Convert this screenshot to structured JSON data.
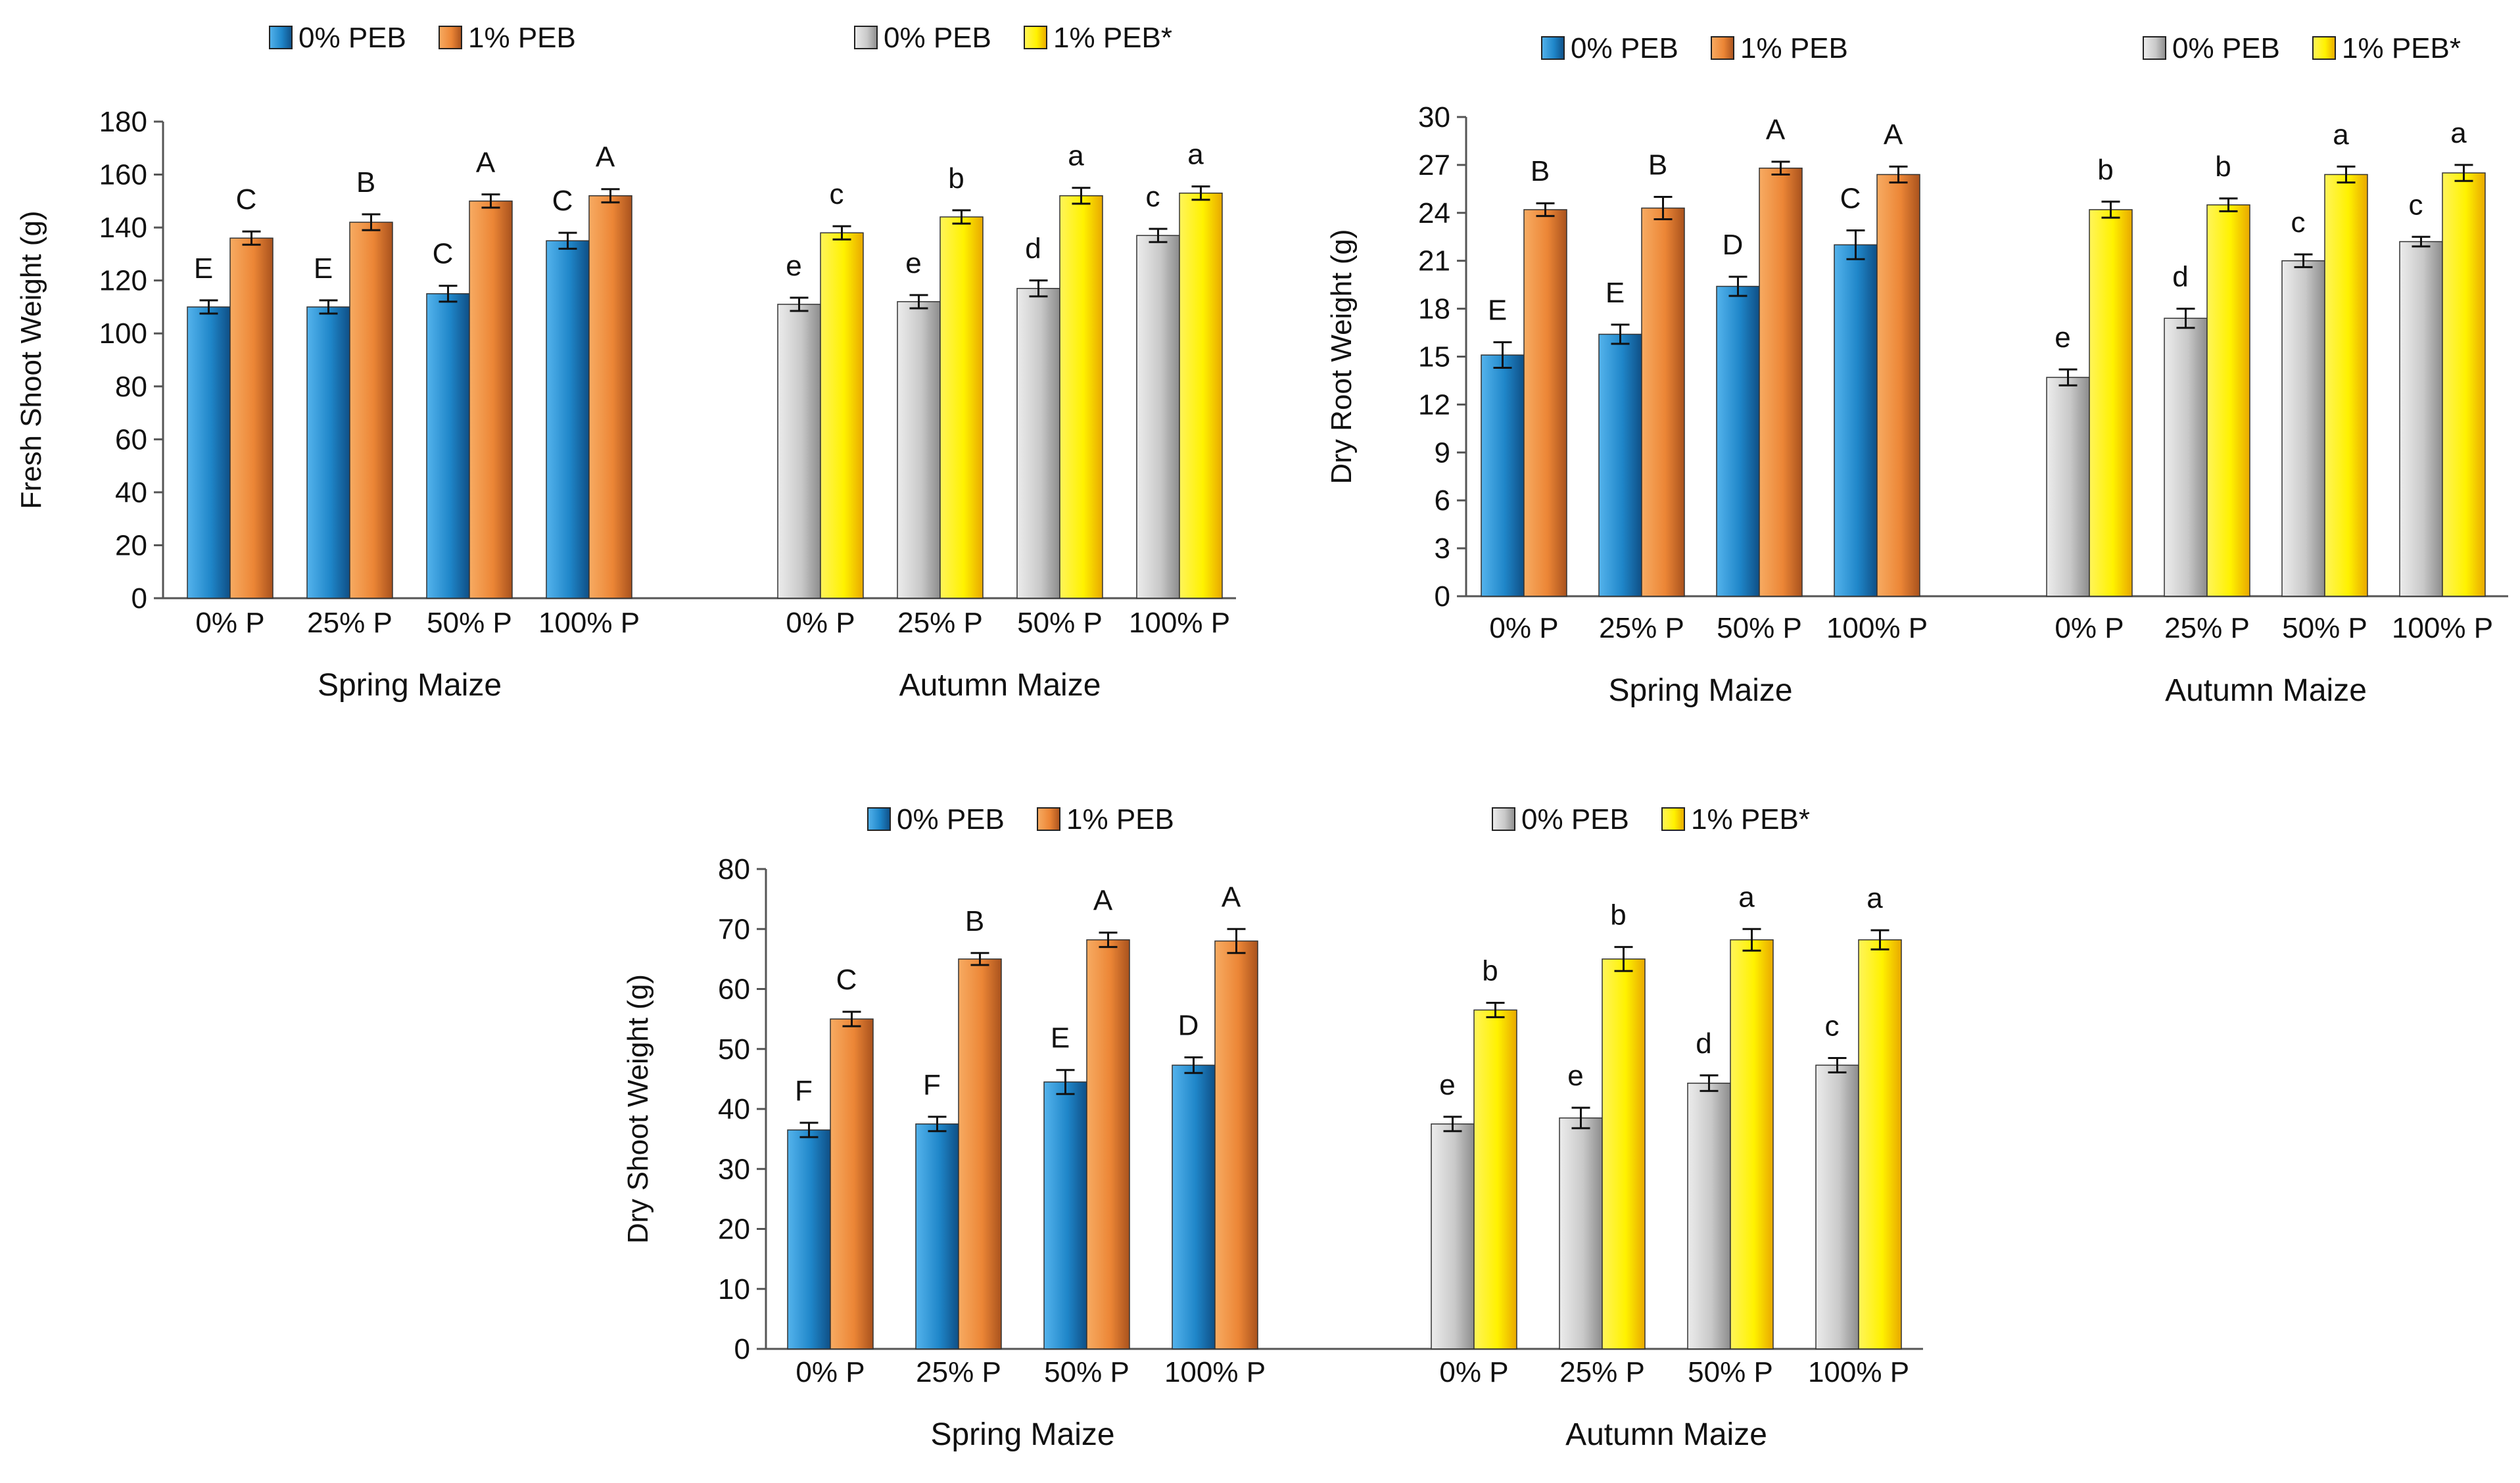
{
  "colors": {
    "spring_0": "#1f7fc4",
    "spring_1": "#ea8636",
    "autumn_0": "#c3c3c3",
    "autumn_1": "#fff200",
    "axis": "#555555",
    "errorbar": "#111111"
  },
  "chart_data": [
    {
      "id": "fresh-shoot",
      "type": "bar",
      "title": "",
      "ylabel": "Fresh Shoot Weight (g)",
      "ylim": [
        0,
        180
      ],
      "yticks": [
        0,
        20,
        40,
        60,
        80,
        100,
        120,
        140,
        160,
        180
      ],
      "grid": false,
      "groups": [
        {
          "name": "Spring Maize",
          "categories": [
            "0% P",
            "25% P",
            "50% P",
            "100% P"
          ],
          "series": [
            {
              "name": "0% PEB",
              "color": "spring_0",
              "values": [
                110,
                110,
                115,
                135
              ],
              "errors": [
                2.5,
                2.5,
                3,
                3
              ],
              "labels": [
                "E",
                "E",
                "C",
                "C"
              ]
            },
            {
              "name": "1% PEB",
              "color": "spring_1",
              "values": [
                136,
                142,
                150,
                152
              ],
              "errors": [
                2.5,
                3,
                2.5,
                2.5
              ],
              "labels": [
                "C",
                "B",
                "A",
                "A"
              ]
            }
          ]
        },
        {
          "name": "Autumn Maize",
          "categories": [
            "0% P",
            "25% P",
            "50% P",
            "100% P"
          ],
          "series": [
            {
              "name": "0% PEB",
              "color": "autumn_0",
              "values": [
                111,
                112,
                117,
                137
              ],
              "errors": [
                2.5,
                2.5,
                3,
                2.5
              ],
              "labels": [
                "e",
                "e",
                "d",
                "c"
              ]
            },
            {
              "name": "1% PEB*",
              "color": "autumn_1",
              "values": [
                138,
                144,
                152,
                153
              ],
              "errors": [
                2.5,
                2.5,
                3,
                2.5
              ],
              "labels": [
                "c",
                "b",
                "a",
                "a"
              ]
            }
          ]
        }
      ]
    },
    {
      "id": "dry-root",
      "type": "bar",
      "title": "",
      "ylabel": "Dry Root Weight (g)",
      "ylim": [
        0,
        30
      ],
      "yticks": [
        0,
        3,
        6,
        9,
        12,
        15,
        18,
        21,
        24,
        27,
        30
      ],
      "grid": false,
      "groups": [
        {
          "name": "Spring Maize",
          "categories": [
            "0% P",
            "25% P",
            "50% P",
            "100% P"
          ],
          "series": [
            {
              "name": "0% PEB",
              "color": "spring_0",
              "values": [
                15.1,
                16.4,
                19.4,
                22
              ],
              "errors": [
                0.8,
                0.6,
                0.6,
                0.9
              ],
              "labels": [
                "E",
                "E",
                "D",
                "C"
              ]
            },
            {
              "name": "1% PEB",
              "color": "spring_1",
              "values": [
                24.2,
                24.3,
                26.8,
                26.4
              ],
              "errors": [
                0.4,
                0.7,
                0.4,
                0.5
              ],
              "labels": [
                "B",
                "B",
                "A",
                "A"
              ]
            }
          ]
        },
        {
          "name": "Autumn Maize",
          "categories": [
            "0% P",
            "25% P",
            "50% P",
            "100% P"
          ],
          "series": [
            {
              "name": "0% PEB",
              "color": "autumn_0",
              "values": [
                13.7,
                17.4,
                21,
                22.2
              ],
              "errors": [
                0.5,
                0.6,
                0.4,
                0.3
              ],
              "labels": [
                "e",
                "d",
                "c",
                "c"
              ]
            },
            {
              "name": "1% PEB*",
              "color": "autumn_1",
              "values": [
                24.2,
                24.5,
                26.4,
                26.5
              ],
              "errors": [
                0.5,
                0.4,
                0.5,
                0.5
              ],
              "labels": [
                "b",
                "b",
                "a",
                "a"
              ]
            }
          ]
        }
      ]
    },
    {
      "id": "dry-shoot",
      "type": "bar",
      "title": "",
      "ylabel": "Dry Shoot Weight (g)",
      "ylim": [
        0,
        80
      ],
      "yticks": [
        0,
        10,
        20,
        30,
        40,
        50,
        60,
        70,
        80
      ],
      "grid": false,
      "groups": [
        {
          "name": "Spring Maize",
          "categories": [
            "0% P",
            "25% P",
            "50% P",
            "100% P"
          ],
          "series": [
            {
              "name": "0% PEB",
              "color": "spring_0",
              "values": [
                36.5,
                37.5,
                44.5,
                47.3
              ],
              "errors": [
                1.2,
                1.2,
                2,
                1.3
              ],
              "labels": [
                "F",
                "F",
                "E",
                "D"
              ]
            },
            {
              "name": "1% PEB",
              "color": "spring_1",
              "values": [
                55,
                65,
                68.2,
                68
              ],
              "errors": [
                1.2,
                1,
                1.2,
                2
              ],
              "labels": [
                "C",
                "B",
                "A",
                "A"
              ]
            }
          ]
        },
        {
          "name": "Autumn Maize",
          "categories": [
            "0% P",
            "25% P",
            "50% P",
            "100% P"
          ],
          "series": [
            {
              "name": "0% PEB",
              "color": "autumn_0",
              "values": [
                37.5,
                38.5,
                44.3,
                47.3
              ],
              "errors": [
                1.2,
                1.7,
                1.3,
                1.2
              ],
              "labels": [
                "e",
                "e",
                "d",
                "c"
              ]
            },
            {
              "name": "1% PEB*",
              "color": "autumn_1",
              "values": [
                56.5,
                65,
                68.2,
                68.2
              ],
              "errors": [
                1.2,
                2,
                1.8,
                1.6
              ],
              "labels": [
                "b",
                "b",
                "a",
                "a"
              ]
            }
          ]
        }
      ]
    }
  ]
}
